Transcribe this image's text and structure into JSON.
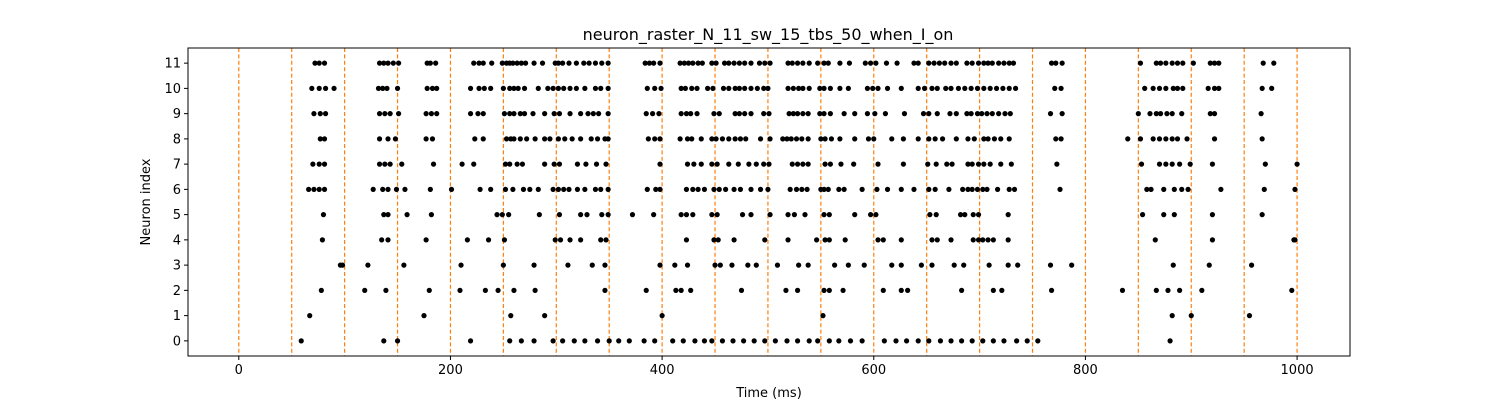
{
  "chart_data": {
    "type": "scatter",
    "title": "neuron_raster_N_11_sw_15_tbs_50_when_I_on",
    "xlabel": "Time (ms)",
    "ylabel": "Neuron index",
    "xlim": [
      -48,
      1050
    ],
    "ylim": [
      -0.6,
      11.6
    ],
    "x_ticks": [
      0,
      200,
      400,
      600,
      800,
      1000
    ],
    "y_ticks": [
      0,
      1,
      2,
      3,
      4,
      5,
      6,
      7,
      8,
      9,
      10,
      11
    ],
    "grid": false,
    "legend": "none",
    "colors": {
      "spike": "#000000",
      "marker_line": "#ff7f0e"
    },
    "vlines": {
      "name": "",
      "style": "dashed",
      "x": [
        0,
        50,
        100,
        150,
        200,
        250,
        300,
        350,
        400,
        450,
        500,
        550,
        600,
        650,
        700,
        750,
        800,
        850,
        900,
        950,
        1000
      ]
    },
    "series": [
      {
        "neuron": 11,
        "x": [
          72,
          76,
          81,
          133,
          137,
          141,
          146,
          151,
          178,
          181,
          186,
          222,
          227,
          231,
          239,
          249,
          253,
          256,
          259,
          263,
          267,
          271,
          279,
          287,
          299,
          302,
          306,
          312,
          319,
          326,
          331,
          337,
          343,
          349,
          384,
          388,
          392,
          398,
          417,
          421,
          425,
          429,
          434,
          438,
          447,
          451,
          459,
          463,
          468,
          473,
          478,
          484,
          492,
          497,
          502,
          519,
          523,
          528,
          533,
          539,
          547,
          553,
          557,
          568,
          577,
          592,
          597,
          602,
          612,
          622,
          638,
          642,
          652,
          657,
          662,
          667,
          673,
          678,
          688,
          693,
          699,
          704,
          708,
          712,
          718,
          723,
          728,
          732,
          768,
          772,
          778,
          852,
          867,
          871,
          876,
          882,
          887,
          892,
          902,
          918,
          922,
          926,
          968,
          978
        ]
      },
      {
        "neuron": 10,
        "x": [
          69,
          76,
          82,
          90,
          132,
          136,
          140,
          150,
          178,
          183,
          187,
          219,
          227,
          232,
          238,
          250,
          256,
          260,
          264,
          270,
          283,
          292,
          297,
          302,
          307,
          313,
          319,
          327,
          337,
          342,
          349,
          386,
          393,
          399,
          418,
          422,
          428,
          433,
          443,
          448,
          458,
          463,
          469,
          473,
          478,
          484,
          490,
          496,
          500,
          519,
          524,
          529,
          533,
          539,
          549,
          553,
          559,
          568,
          576,
          594,
          599,
          604,
          613,
          626,
          642,
          648,
          655,
          660,
          668,
          673,
          680,
          686,
          692,
          698,
          704,
          710,
          716,
          722,
          728,
          734,
          771,
          777,
          856,
          864,
          870,
          876,
          883,
          887,
          892,
          916,
          922,
          926,
          967,
          976
        ]
      },
      {
        "neuron": 9,
        "x": [
          71,
          77,
          82,
          133,
          138,
          143,
          151,
          177,
          182,
          187,
          219,
          226,
          231,
          251,
          256,
          260,
          266,
          270,
          278,
          289,
          298,
          303,
          313,
          323,
          330,
          335,
          340,
          349,
          385,
          391,
          397,
          418,
          423,
          427,
          433,
          449,
          454,
          469,
          473,
          478,
          484,
          496,
          501,
          520,
          524,
          528,
          533,
          538,
          549,
          553,
          559,
          572,
          582,
          594,
          601,
          611,
          629,
          647,
          652,
          660,
          672,
          678,
          688,
          692,
          698,
          702,
          707,
          712,
          718,
          724,
          729,
          767,
          778,
          850,
          861,
          867,
          871,
          877,
          882,
          891,
          918,
          922,
          966
        ]
      },
      {
        "neuron": 8,
        "x": [
          77,
          81,
          133,
          141,
          148,
          177,
          183,
          223,
          231,
          253,
          257,
          260,
          266,
          272,
          280,
          289,
          294,
          302,
          308,
          315,
          323,
          333,
          339,
          346,
          349,
          387,
          393,
          398,
          417,
          424,
          428,
          437,
          447,
          451,
          457,
          463,
          469,
          474,
          479,
          493,
          502,
          514,
          518,
          522,
          527,
          532,
          538,
          550,
          554,
          560,
          568,
          582,
          595,
          600,
          617,
          628,
          642,
          652,
          658,
          665,
          678,
          689,
          695,
          704,
          708,
          714,
          720,
          728,
          772,
          777,
          840,
          852,
          864,
          870,
          876,
          882,
          887,
          896,
          922,
          967
        ]
      },
      {
        "neuron": 7,
        "x": [
          70,
          76,
          81,
          133,
          138,
          143,
          154,
          184,
          211,
          222,
          252,
          256,
          263,
          268,
          289,
          298,
          303,
          320,
          328,
          338,
          347,
          398,
          424,
          430,
          437,
          447,
          452,
          463,
          472,
          482,
          489,
          496,
          501,
          523,
          528,
          533,
          538,
          554,
          559,
          569,
          581,
          604,
          628,
          651,
          659,
          669,
          674,
          689,
          693,
          699,
          704,
          710,
          720,
          730,
          773,
          853,
          870,
          876,
          882,
          889,
          899,
          920,
          970,
          1000
        ]
      },
      {
        "neuron": 6,
        "x": [
          66,
          71,
          76,
          81,
          127,
          136,
          141,
          149,
          157,
          181,
          201,
          228,
          238,
          252,
          259,
          269,
          275,
          283,
          297,
          302,
          307,
          312,
          320,
          327,
          337,
          342,
          349,
          386,
          394,
          398,
          423,
          429,
          434,
          440,
          449,
          454,
          460,
          468,
          474,
          484,
          493,
          500,
          521,
          527,
          532,
          537,
          550,
          553,
          557,
          567,
          572,
          589,
          603,
          613,
          626,
          638,
          652,
          658,
          671,
          684,
          689,
          693,
          698,
          703,
          707,
          717,
          728,
          733,
          776,
          858,
          862,
          874,
          884,
          891,
          897,
          928,
          969,
          998
        ]
      },
      {
        "neuron": 5,
        "x": [
          80,
          137,
          141,
          159,
          182,
          244,
          249,
          255,
          284,
          303,
          323,
          329,
          343,
          349,
          372,
          392,
          418,
          423,
          429,
          447,
          452,
          476,
          484,
          502,
          519,
          525,
          535,
          553,
          558,
          582,
          597,
          602,
          653,
          659,
          682,
          686,
          694,
          699,
          727,
          854,
          874,
          884,
          920,
          967
        ]
      },
      {
        "neuron": 4,
        "x": [
          79,
          135,
          141,
          177,
          216,
          236,
          251,
          299,
          304,
          313,
          323,
          342,
          347,
          423,
          449,
          453,
          468,
          497,
          519,
          546,
          554,
          558,
          573,
          604,
          609,
          626,
          655,
          660,
          673,
          694,
          699,
          703,
          708,
          713,
          727,
          866,
          920,
          997,
          998
        ]
      },
      {
        "neuron": 3,
        "x": [
          96,
          98,
          122,
          156,
          210,
          250,
          279,
          311,
          334,
          346,
          398,
          412,
          424,
          450,
          455,
          466,
          481,
          489,
          509,
          529,
          538,
          563,
          576,
          591,
          617,
          626,
          645,
          655,
          676,
          685,
          709,
          727,
          736,
          767,
          787,
          883,
          917,
          957
        ]
      },
      {
        "neuron": 2,
        "x": [
          78,
          119,
          139,
          180,
          209,
          233,
          245,
          260,
          280,
          346,
          385,
          413,
          418,
          427,
          475,
          517,
          528,
          553,
          558,
          571,
          609,
          626,
          632,
          683,
          713,
          721,
          768,
          835,
          867,
          878,
          889,
          910,
          995
        ]
      },
      {
        "neuron": 1,
        "x": [
          67,
          175,
          257,
          289,
          400,
          552,
          882,
          900,
          955
        ]
      },
      {
        "neuron": 0,
        "x": [
          59,
          137,
          150,
          219,
          256,
          267,
          279,
          297,
          306,
          317,
          327,
          339,
          350,
          359,
          369,
          383,
          393,
          410,
          420,
          431,
          440,
          447,
          457,
          467,
          477,
          487,
          497,
          507,
          518,
          528,
          539,
          547,
          558,
          567,
          578,
          589,
          610,
          621,
          631,
          642,
          652,
          663,
          673,
          683,
          693,
          703,
          713,
          723,
          735,
          745,
          755,
          880
        ]
      }
    ]
  }
}
